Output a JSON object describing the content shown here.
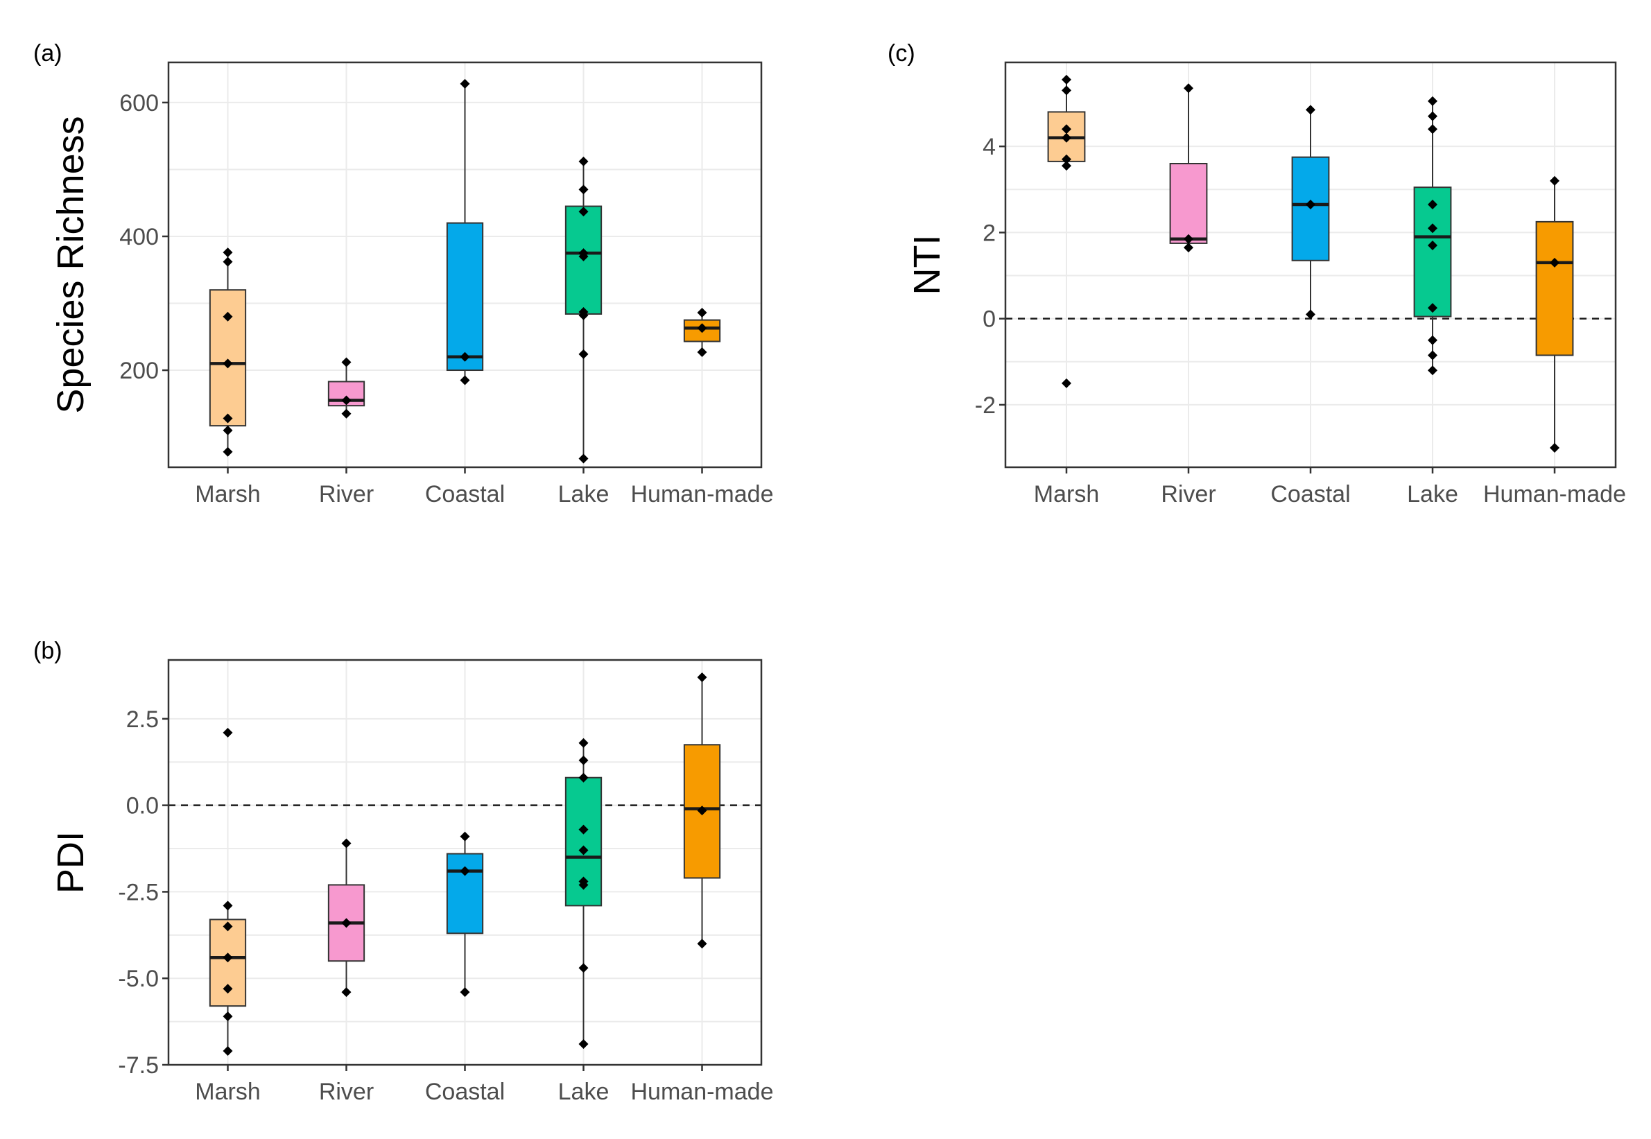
{
  "figure": {
    "categories": [
      "Marsh",
      "River",
      "Coastal",
      "Lake",
      "Human-made"
    ],
    "colors": {
      "Marsh": "#FDCC92",
      "River": "#F799CF",
      "Coastal": "#04A9EA",
      "Lake": "#06C990",
      "Human-made": "#F79B00"
    }
  },
  "chart_data": [
    {
      "id": "a",
      "panel_label": "(a)",
      "type": "box",
      "ylabel": "Species Richness",
      "xlabel": "",
      "ylim": [
        55,
        660
      ],
      "yticks": [
        200,
        400,
        600
      ],
      "ytick_labels": [
        "200",
        "400",
        "600"
      ],
      "reference_line": null,
      "categories": [
        "Marsh",
        "River",
        "Coastal",
        "Lake",
        "Human-made"
      ],
      "boxes": [
        {
          "category": "Marsh",
          "low": 78,
          "q1": 117,
          "median": 210,
          "q3": 320,
          "high": 376,
          "points": [
            78,
            110,
            128,
            210,
            280,
            362,
            376
          ]
        },
        {
          "category": "River",
          "low": 135,
          "q1": 147,
          "median": 155,
          "q3": 183,
          "high": 212,
          "points": [
            135,
            155,
            212
          ]
        },
        {
          "category": "Coastal",
          "low": 185,
          "q1": 200,
          "median": 220,
          "q3": 420,
          "high": 628,
          "points": [
            185,
            220,
            628
          ]
        },
        {
          "category": "Lake",
          "low": 68,
          "q1": 284,
          "median": 375,
          "q3": 445,
          "high": 512,
          "points": [
            68,
            224,
            282,
            287,
            370,
            375,
            437,
            470,
            512
          ]
        },
        {
          "category": "Human-made",
          "low": 227,
          "q1": 243,
          "median": 263,
          "q3": 275,
          "high": 286,
          "points": [
            227,
            263,
            286
          ]
        }
      ]
    },
    {
      "id": "b",
      "panel_label": "(b)",
      "type": "box",
      "ylabel": "PDI",
      "xlabel": "",
      "ylim": [
        -7.5,
        4.2
      ],
      "yticks": [
        -7.5,
        -5.0,
        -2.5,
        0.0,
        2.5
      ],
      "ytick_labels": [
        "-7.5",
        "-5.0",
        "-2.5",
        "0.0",
        "2.5"
      ],
      "reference_line": 0,
      "categories": [
        "Marsh",
        "River",
        "Coastal",
        "Lake",
        "Human-made"
      ],
      "boxes": [
        {
          "category": "Marsh",
          "low": -7.1,
          "q1": -5.8,
          "median": -4.4,
          "q3": -3.3,
          "high": -2.9,
          "points": [
            -7.1,
            -6.1,
            -5.3,
            -4.4,
            -3.5,
            -2.9,
            2.1
          ]
        },
        {
          "category": "River",
          "low": -5.4,
          "q1": -4.5,
          "median": -3.4,
          "q3": -2.3,
          "high": -1.1,
          "points": [
            -5.4,
            -3.4,
            -1.1
          ]
        },
        {
          "category": "Coastal",
          "low": -5.4,
          "q1": -3.7,
          "median": -1.9,
          "q3": -1.4,
          "high": -0.9,
          "points": [
            -5.4,
            -1.9,
            -0.9
          ]
        },
        {
          "category": "Lake",
          "low": -6.9,
          "q1": -2.9,
          "median": -1.5,
          "q3": 0.8,
          "high": 1.8,
          "points": [
            -6.9,
            -4.7,
            -2.3,
            -2.2,
            -1.3,
            -0.7,
            0.8,
            1.3,
            1.8
          ]
        },
        {
          "category": "Human-made",
          "low": -4.0,
          "q1": -2.1,
          "median": -0.1,
          "q3": 1.75,
          "high": 3.7,
          "points": [
            -4.0,
            -0.15,
            3.7
          ]
        }
      ]
    },
    {
      "id": "c",
      "panel_label": "(c)",
      "type": "box",
      "ylabel": "NTI",
      "xlabel": "",
      "ylim": [
        -3.45,
        5.95
      ],
      "yticks": [
        -2,
        0,
        2,
        4
      ],
      "ytick_labels": [
        "-2",
        "0",
        "2",
        "4"
      ],
      "reference_line": 0,
      "categories": [
        "Marsh",
        "River",
        "Coastal",
        "Lake",
        "Human-made"
      ],
      "boxes": [
        {
          "category": "Marsh",
          "low": 3.55,
          "q1": 3.65,
          "median": 4.2,
          "q3": 4.8,
          "high": 5.55,
          "points": [
            -1.5,
            3.55,
            3.7,
            4.2,
            4.4,
            5.3,
            5.55
          ]
        },
        {
          "category": "River",
          "low": 1.65,
          "q1": 1.75,
          "median": 1.85,
          "q3": 3.6,
          "high": 5.35,
          "points": [
            1.65,
            1.85,
            5.35
          ]
        },
        {
          "category": "Coastal",
          "low": 0.1,
          "q1": 1.35,
          "median": 2.65,
          "q3": 3.75,
          "high": 4.85,
          "points": [
            0.1,
            2.65,
            4.85
          ]
        },
        {
          "category": "Lake",
          "low": -1.2,
          "q1": 0.05,
          "median": 1.9,
          "q3": 3.05,
          "high": 5.05,
          "points": [
            -1.2,
            -0.85,
            -0.5,
            0.25,
            1.7,
            2.1,
            2.65,
            4.4,
            4.7,
            5.05
          ]
        },
        {
          "category": "Human-made",
          "low": -3.0,
          "q1": -0.85,
          "median": 1.3,
          "q3": 2.25,
          "high": 3.2,
          "points": [
            -3.0,
            1.3,
            3.2
          ]
        }
      ]
    }
  ]
}
